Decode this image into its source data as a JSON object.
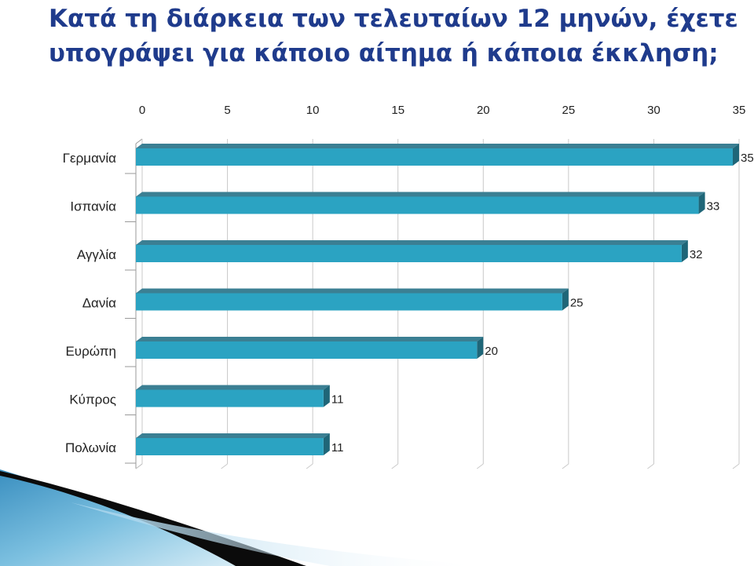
{
  "slide": {
    "title_line1": "Κατά τη διάρκεια των τελευταίων 12 μηνών, έχετε",
    "title_line2": "υπογράψει για κάποιο αίτημα ή κάποια έκκληση;"
  },
  "colors": {
    "bar_front": "#2ba3c2",
    "bar_top": "#3b7f93",
    "bar_side": "#1f6678",
    "grid": "#c9c9c9",
    "title": "#1f3b8c"
  },
  "chart_data": {
    "type": "bar",
    "orientation": "horizontal",
    "style": "3d",
    "categories": [
      "Γερμανία",
      "Ισπανία",
      "Αγγλία",
      "Δανία",
      "Ευρώπη",
      "Κύπρος",
      "Πολωνία"
    ],
    "values": [
      35,
      33,
      32,
      25,
      20,
      11,
      11
    ],
    "xlim": [
      0,
      35
    ],
    "x_ticks": [
      0,
      5,
      10,
      15,
      20,
      25,
      30,
      35
    ],
    "x_axis_position": "top",
    "grid": true,
    "data_labels": true,
    "legend": "none"
  }
}
